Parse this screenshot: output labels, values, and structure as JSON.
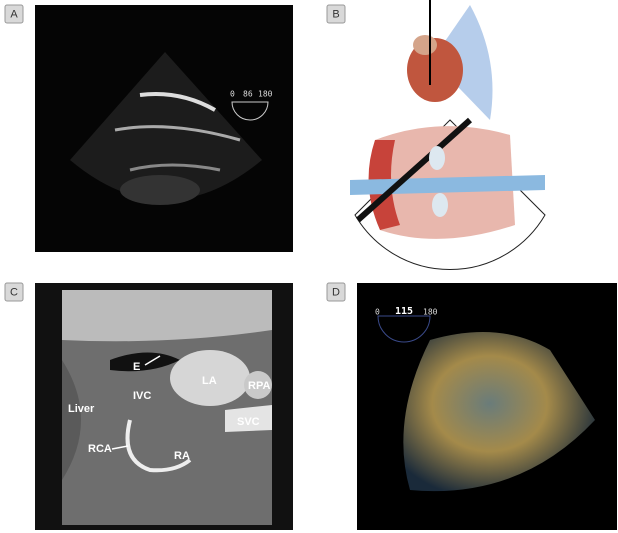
{
  "panels": [
    {
      "label": "A",
      "overlay": [
        0,
        86,
        180
      ]
    },
    {
      "label": "B"
    },
    {
      "label": "C",
      "annotations": [
        "E",
        "LA",
        "RPA",
        "IVC",
        "Liver",
        "SVC",
        "RCA",
        "RA"
      ]
    },
    {
      "label": "D",
      "overlay": [
        0,
        115,
        180
      ]
    }
  ]
}
